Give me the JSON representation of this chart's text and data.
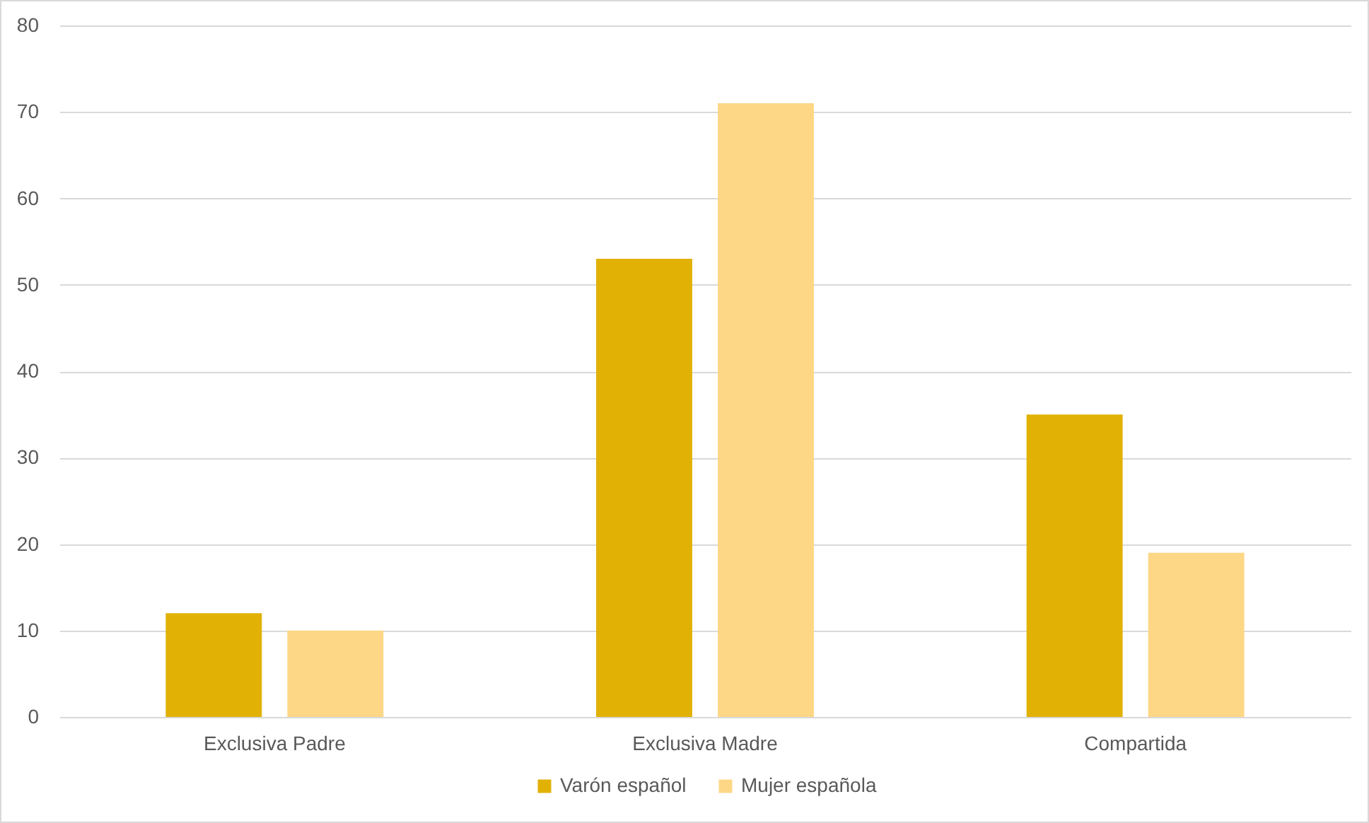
{
  "chart_data": {
    "type": "bar",
    "categories": [
      "Exclusiva Padre",
      "Exclusiva Madre",
      "Compartida"
    ],
    "series": [
      {
        "name": "Varón español",
        "color": "#e1b106",
        "values": [
          12,
          53,
          35
        ]
      },
      {
        "name": "Mujer española",
        "color": "#fdd786",
        "values": [
          10,
          71,
          19
        ]
      }
    ],
    "ylim": [
      0,
      80
    ],
    "yticks": [
      0,
      10,
      20,
      30,
      40,
      50,
      60,
      70,
      80
    ],
    "grid": "y",
    "legend": "bottom"
  }
}
